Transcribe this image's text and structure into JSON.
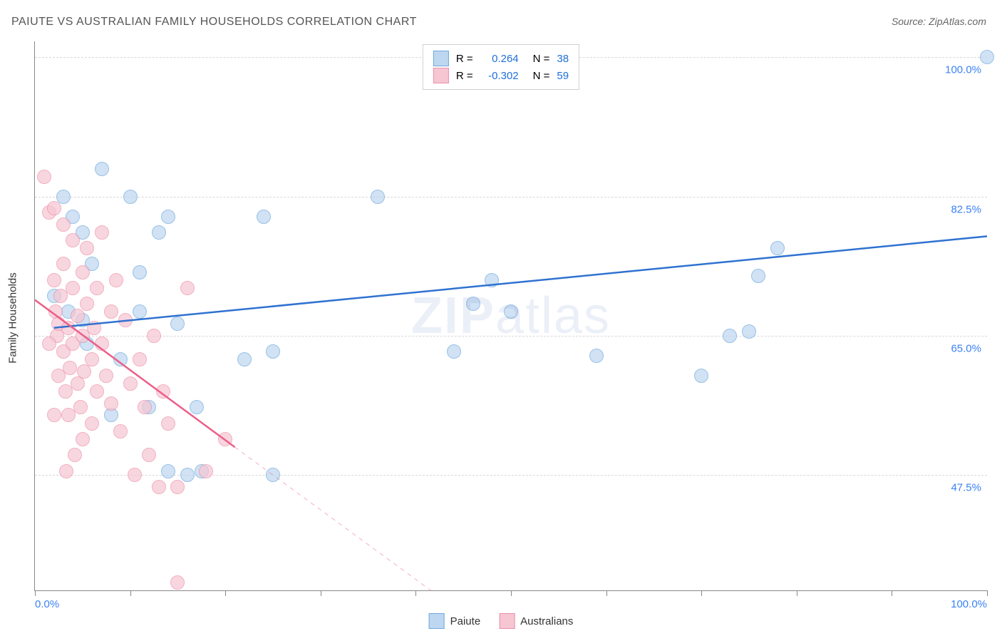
{
  "title": "PAIUTE VS AUSTRALIAN FAMILY HOUSEHOLDS CORRELATION CHART",
  "source": "Source: ZipAtlas.com",
  "watermark": "ZIPatlas",
  "chart": {
    "type": "scatter",
    "y_axis_label": "Family Households",
    "xlim": [
      0,
      100
    ],
    "ylim": [
      33,
      102
    ],
    "x_ticks": [
      0,
      10,
      20,
      30,
      40,
      50,
      60,
      70,
      80,
      90,
      100
    ],
    "x_tick_labels": {
      "0": "0.0%",
      "100": "100.0%"
    },
    "y_gridlines": [
      47.5,
      65.0,
      82.5,
      100.0
    ],
    "y_tick_labels": [
      "47.5%",
      "65.0%",
      "82.5%",
      "100.0%"
    ],
    "grid_color": "#d8d8d8",
    "axis_color": "#888888",
    "background_color": "#ffffff",
    "tick_label_color": "#3b82f6",
    "marker_radius": 9,
    "series": [
      {
        "name": "Paiute",
        "fill": "#bdd7f0",
        "stroke": "#6ea8dc",
        "R": "0.264",
        "N": "38",
        "trend": {
          "x1": 2,
          "y1": 66.0,
          "x2": 100,
          "y2": 77.5,
          "color": "#2f72d1",
          "width": 2.5,
          "dash_after_x": 100
        },
        "points": [
          [
            2,
            70
          ],
          [
            3,
            82.5
          ],
          [
            3.5,
            68
          ],
          [
            4,
            80
          ],
          [
            5,
            67
          ],
          [
            5.5,
            64
          ],
          [
            6,
            74
          ],
          [
            7,
            86
          ],
          [
            8,
            55
          ],
          [
            9,
            62
          ],
          [
            10,
            82.5
          ],
          [
            11,
            73
          ],
          [
            12,
            56
          ],
          [
            14,
            80
          ],
          [
            15,
            66.5
          ],
          [
            11,
            68
          ],
          [
            14,
            48
          ],
          [
            16,
            47.5
          ],
          [
            17,
            56
          ],
          [
            17.5,
            48
          ],
          [
            22,
            62
          ],
          [
            24,
            80
          ],
          [
            25,
            47.5
          ],
          [
            25,
            63
          ],
          [
            36,
            82.5
          ],
          [
            44,
            63
          ],
          [
            46,
            69
          ],
          [
            48,
            72
          ],
          [
            50,
            68
          ],
          [
            59,
            62.5
          ],
          [
            70,
            60
          ],
          [
            73,
            65
          ],
          [
            75,
            65.5
          ],
          [
            76,
            72.5
          ],
          [
            78,
            76
          ],
          [
            100,
            100
          ],
          [
            5,
            78
          ],
          [
            13,
            78
          ]
        ]
      },
      {
        "name": "Australians",
        "fill": "#f6c6d3",
        "stroke": "#ec8fa8",
        "R": "-0.302",
        "N": "59",
        "trend": {
          "x1": 0,
          "y1": 69.5,
          "x2": 21,
          "y2": 51.0,
          "color": "#ec5f88",
          "width": 2.5,
          "dash_after_x": 21,
          "dash_x2": 45,
          "dash_y2": 30
        },
        "points": [
          [
            1,
            85
          ],
          [
            1.5,
            80.5
          ],
          [
            2,
            81
          ],
          [
            2,
            72
          ],
          [
            2.2,
            68
          ],
          [
            2.3,
            65
          ],
          [
            2.5,
            60
          ],
          [
            2.5,
            66.5
          ],
          [
            2.7,
            70
          ],
          [
            3,
            63
          ],
          [
            3,
            74
          ],
          [
            3,
            79
          ],
          [
            3.2,
            58
          ],
          [
            3.5,
            55
          ],
          [
            3.5,
            66
          ],
          [
            3.7,
            61
          ],
          [
            4,
            77
          ],
          [
            4,
            71
          ],
          [
            4,
            64
          ],
          [
            4.2,
            50
          ],
          [
            4.5,
            67.5
          ],
          [
            4.5,
            59
          ],
          [
            4.8,
            56
          ],
          [
            5,
            52
          ],
          [
            5,
            65
          ],
          [
            5,
            73
          ],
          [
            5.2,
            60.5
          ],
          [
            5.5,
            69
          ],
          [
            5.5,
            76
          ],
          [
            6,
            62
          ],
          [
            6,
            54
          ],
          [
            6.2,
            66
          ],
          [
            6.5,
            58
          ],
          [
            6.5,
            71
          ],
          [
            7,
            78
          ],
          [
            7,
            64
          ],
          [
            7.5,
            60
          ],
          [
            8,
            56.5
          ],
          [
            8,
            68
          ],
          [
            8.5,
            72
          ],
          [
            1.5,
            64
          ],
          [
            2,
            55
          ],
          [
            3.3,
            48
          ],
          [
            9,
            53
          ],
          [
            9.5,
            67
          ],
          [
            10,
            59
          ],
          [
            10.5,
            47.5
          ],
          [
            11,
            62
          ],
          [
            11.5,
            56
          ],
          [
            12,
            50
          ],
          [
            12.5,
            65
          ],
          [
            13,
            46
          ],
          [
            13.5,
            58
          ],
          [
            14,
            54
          ],
          [
            15,
            46
          ],
          [
            15,
            34
          ],
          [
            16,
            71
          ],
          [
            18,
            48
          ],
          [
            20,
            52
          ]
        ]
      }
    ]
  },
  "legend_top": {
    "r_label": "R =",
    "n_label": "N =",
    "value_color": "#1e6fd9"
  },
  "legend_bottom": {
    "items": [
      "Paiute",
      "Australians"
    ]
  }
}
